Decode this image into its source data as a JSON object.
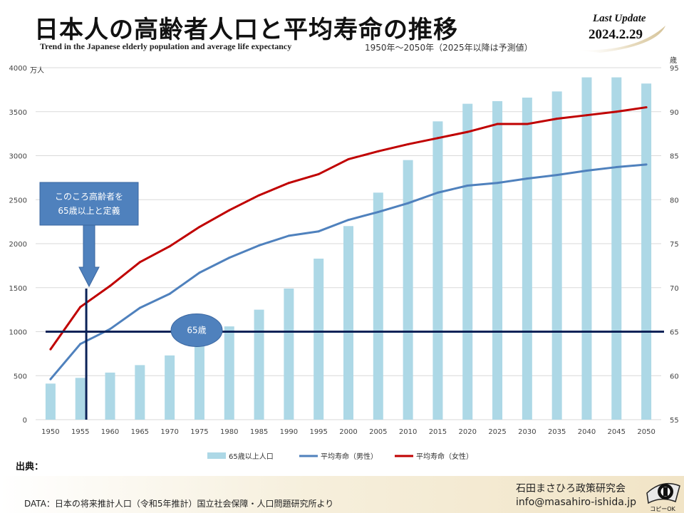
{
  "header": {
    "title": "日本人の高齢者人口と平均寿命の推移",
    "subtitle_en": "Trend in the Japanese elderly population and average life expectancy",
    "subtitle_range": "1950年～2050年（2025年以降は予測値）",
    "last_update_label": "Last Update",
    "last_update_date": "2024.2.29"
  },
  "chart_data": {
    "type": "bar",
    "categories": [
      "1950",
      "1955",
      "1960",
      "1965",
      "1970",
      "1975",
      "1980",
      "1985",
      "1990",
      "1995",
      "2000",
      "2005",
      "2010",
      "2015",
      "2020",
      "2025",
      "2030",
      "2035",
      "2040",
      "2045",
      "2050"
    ],
    "series": [
      {
        "name": "65歳以上人口",
        "type": "bar",
        "axis": "left",
        "color": "#add8e6",
        "values": [
          410,
          475,
          535,
          620,
          730,
          890,
          1060,
          1250,
          1490,
          1830,
          2200,
          2580,
          2950,
          3390,
          3590,
          3620,
          3660,
          3730,
          3890,
          3890,
          3820
        ]
      },
      {
        "name": "平均寿命（男性）",
        "type": "line",
        "axis": "right",
        "color": "#4f81bd",
        "values": [
          59.6,
          63.6,
          65.3,
          67.7,
          69.3,
          71.7,
          73.4,
          74.8,
          75.9,
          76.4,
          77.7,
          78.6,
          79.6,
          80.8,
          81.6,
          81.9,
          82.4,
          82.8,
          83.3,
          83.7,
          84.0
        ]
      },
      {
        "name": "平均寿命（女性）",
        "type": "line",
        "axis": "right",
        "color": "#c00000",
        "values": [
          63.0,
          67.8,
          70.2,
          72.9,
          74.7,
          76.9,
          78.8,
          80.5,
          81.9,
          82.9,
          84.6,
          85.5,
          86.3,
          87.0,
          87.7,
          88.6,
          88.6,
          89.2,
          89.6,
          90.0,
          90.5
        ]
      }
    ],
    "y_left": {
      "unit": "万人",
      "ticks": [
        "0",
        "500",
        "1000",
        "1500",
        "2000",
        "2500",
        "3000",
        "3500",
        "4000"
      ],
      "ylim": [
        0,
        4000
      ]
    },
    "y_right": {
      "unit": "歳",
      "ticks": [
        "55",
        "60",
        "65",
        "70",
        "75",
        "80",
        "85",
        "90",
        "95"
      ],
      "ylim": [
        55,
        95
      ]
    },
    "grid": true,
    "legend_position": "bottom",
    "annotations": {
      "callout_text_line1": "このころ高齢者を",
      "callout_text_line2": "65歳以上と定義",
      "callout_year": "1956",
      "reference_line_label": "65歳",
      "reference_line_value": 65
    }
  },
  "colors": {
    "bar": "#add8e6",
    "male_line": "#4f81bd",
    "female_line": "#c00000",
    "reference_line": "#0b2257",
    "callout_fill": "#4f81bd"
  },
  "source": {
    "label": "出典："
  },
  "footer": {
    "data_text": "DATA：日本の将来推計人口（令和5年推計）国立社会保障・人口問題研究所より",
    "org_name": "石田まさひろ政策研究会",
    "email": "info@masahiro-ishida.jp",
    "badge_text": "コピーOK"
  }
}
